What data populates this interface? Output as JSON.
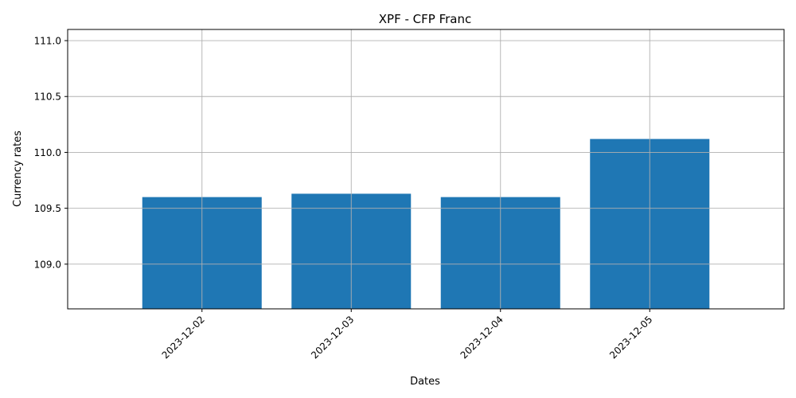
{
  "chart_data": {
    "type": "bar",
    "title": "XPF - CFP Franc",
    "xlabel": "Dates",
    "ylabel": "Currency rates",
    "categories": [
      "2023-12-02",
      "2023-12-03",
      "2023-12-04",
      "2023-12-05"
    ],
    "values": [
      109.6,
      109.63,
      109.6,
      110.12
    ],
    "ylim": [
      108.6,
      111.1
    ],
    "yticks": [
      109.0,
      109.5,
      110.0,
      110.5,
      111.0
    ],
    "ytick_labels": [
      "109.0",
      "109.5",
      "110.0",
      "110.5",
      "111.0"
    ],
    "grid": true,
    "bar_color": "#1f77b4",
    "grid_color": "#b0b0b0"
  }
}
